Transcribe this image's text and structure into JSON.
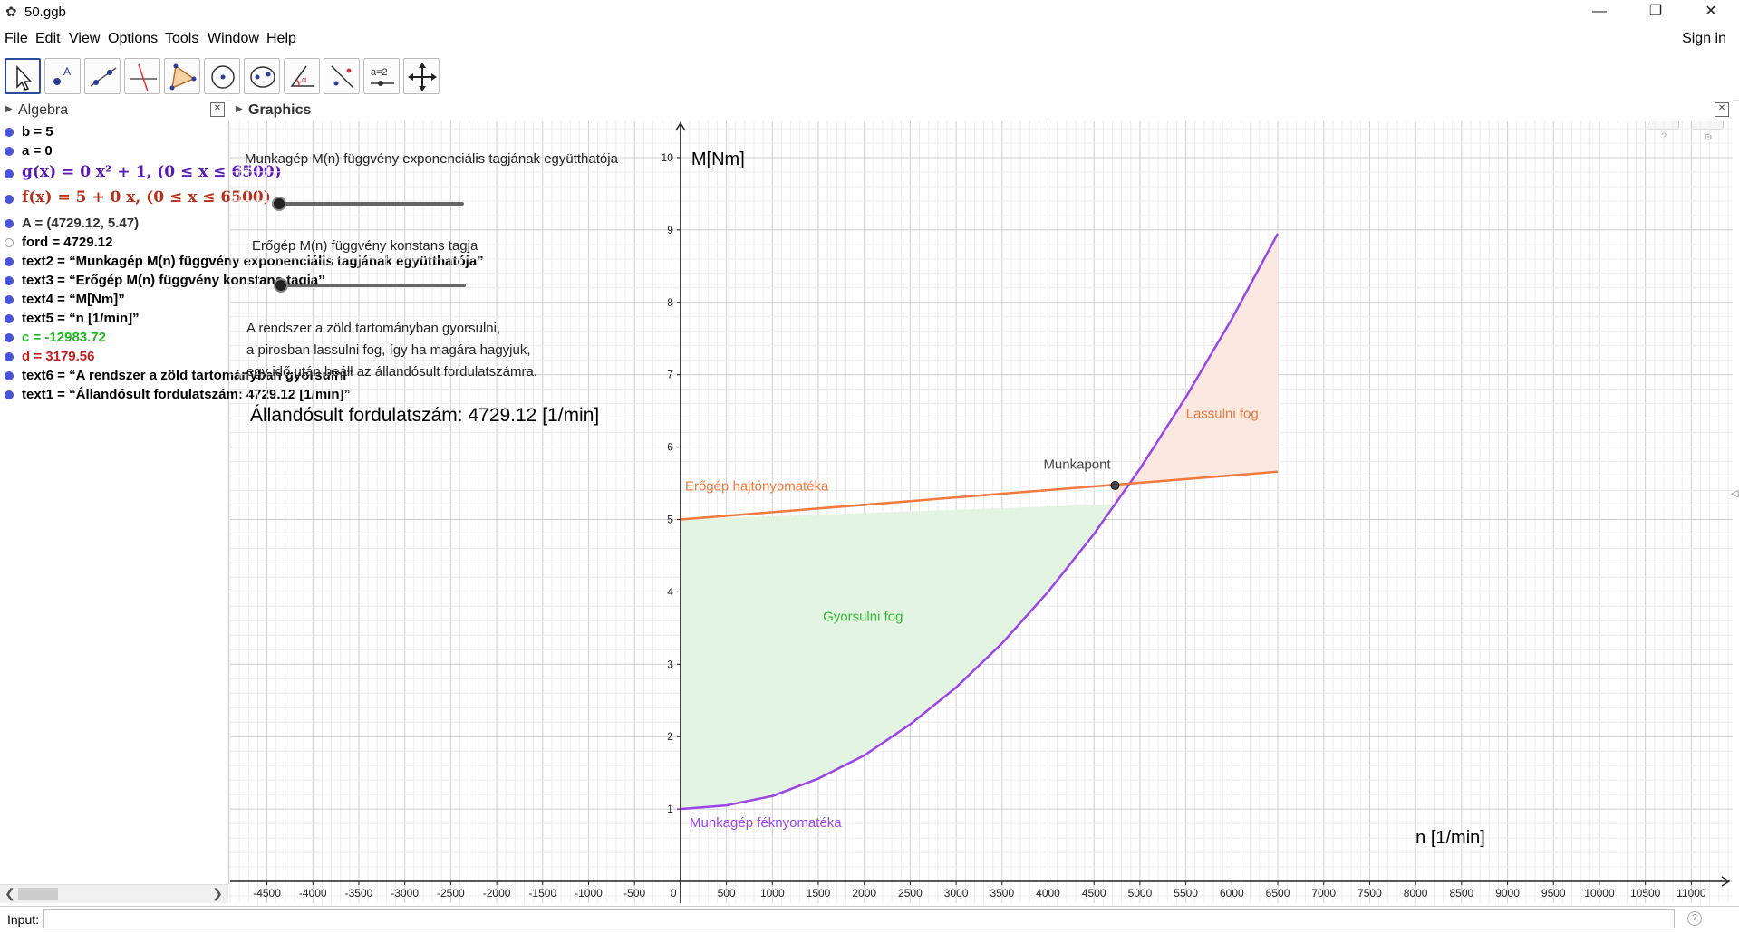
{
  "window": {
    "title": "50.ggb"
  },
  "menu": [
    "File",
    "Edit",
    "View",
    "Options",
    "Tools",
    "Window",
    "Help"
  ],
  "sign_in": "Sign in",
  "toolbar": {
    "tools": [
      "move",
      "point",
      "line",
      "perpendicular-line",
      "polygon",
      "circle",
      "conic",
      "angle",
      "reflect",
      "slider",
      "move-graphics-view"
    ],
    "slider_tool_label": "a=2"
  },
  "algebra": {
    "title": "Algebra",
    "items": [
      {
        "text": "b = 5",
        "color": "#000000"
      },
      {
        "text": "a = 0",
        "color": "#000000"
      },
      {
        "text": "g(x)  =  0 x² + 1,    (0 ≤ x ≤ 6500)",
        "color": "#5b1ab8"
      },
      {
        "text": "f(x)  =  5 + 0 x,    (0 ≤ x ≤ 6500)",
        "color": "#b82e1a"
      },
      {
        "text": "A = (4729.12, 5.47)",
        "color": "#333333"
      },
      {
        "text": "ford = 4729.12",
        "color": "#000000"
      },
      {
        "text": "text2 = “Munkagép M(n) függvény exponenciális tagjának együtthatója”",
        "color": "#000000"
      },
      {
        "text": "text3 = “Erőgép M(n) függvény konstans tagja”",
        "color": "#000000"
      },
      {
        "text": "text4 = “M[Nm]”",
        "color": "#000000"
      },
      {
        "text": "text5 = “n [1/min]”",
        "color": "#000000"
      },
      {
        "text": "c = -12983.72",
        "color": "#1fb81f"
      },
      {
        "text": "d = 3179.56",
        "color": "#c21f1f"
      },
      {
        "text": "text6 = “A rendszer a zöld tartományban gyorsulni”",
        "color": "#000000"
      },
      {
        "text": "text1 = “Állandósult fordulatszám: 4729.12 [1/min]”",
        "color": "#000000"
      }
    ]
  },
  "graphics": {
    "title": "Graphics",
    "texts": {
      "slider1_label": "Munkagép M(n) függvény exponenciális tagjának együtthatója",
      "slider2_label": "Erőgép M(n) függvény konstans tagja",
      "info_line1": "A rendszer a zöld tartományban gyorsulni,",
      "info_line2": " a pirosban lassulni fog, így ha magára hagyjuk,",
      "info_line3": "egy idő után beáll az állandósult fordulatszámra.",
      "steady": "Állandósult fordulatszám: 4729.12 [1/min]",
      "y_axis_label": "M[Nm]",
      "x_axis_label": "n [1/min]",
      "motor_label": "Erőgép hajtónyomatéka",
      "load_label": "Munkagép féknyomatéka",
      "point_label": "Munkapont",
      "accel_label": "Gyorsulni fog",
      "decel_label": "Lassulni fog"
    },
    "colors": {
      "motor": "#f27a3c",
      "load": "#9b45e6",
      "accel_fill": "#e3f4e3",
      "decel_fill": "#fbe8e1",
      "accel_text": "#33b833",
      "decel_text": "#ec7a3c",
      "grid_minor": "#ececec",
      "grid_major": "#cfcfcf"
    },
    "sliders": {
      "slider1_value": 0,
      "slider2_value": 0
    },
    "chart_data": {
      "type": "line",
      "xlim": [
        -4900,
        11450
      ],
      "ylim": [
        -0.3,
        10.5
      ],
      "x_ticks": [
        -4500,
        -4000,
        -3500,
        -3000,
        -2500,
        -2000,
        -1500,
        -1000,
        -500,
        0,
        500,
        1000,
        1500,
        2000,
        2500,
        3000,
        3500,
        4000,
        4500,
        5000,
        5500,
        6000,
        6500,
        7000,
        7500,
        8000,
        8500,
        9000,
        9500,
        10000,
        10500,
        11000
      ],
      "y_ticks": [
        1,
        2,
        3,
        4,
        5,
        6,
        7,
        8,
        9,
        10
      ],
      "series": [
        {
          "name": "Erőgép hajtónyomatéka",
          "x": [
            0,
            6500
          ],
          "y": [
            5.0,
            5.66
          ]
        },
        {
          "name": "Munkagép féknyomatéka",
          "x": [
            0,
            500,
            1000,
            1500,
            2000,
            2500,
            3000,
            3500,
            4000,
            4500,
            5000,
            5500,
            6000,
            6500
          ],
          "y": [
            1.0,
            1.05,
            1.18,
            1.42,
            1.74,
            2.17,
            2.68,
            3.29,
            4.0,
            4.8,
            5.7,
            6.69,
            7.77,
            8.95
          ]
        }
      ],
      "intersection": {
        "label": "Munkapont",
        "x": 4729.12,
        "y": 5.47
      },
      "grid": true
    }
  },
  "input_bar": {
    "label": "Input:",
    "value": "",
    "help": "?"
  }
}
